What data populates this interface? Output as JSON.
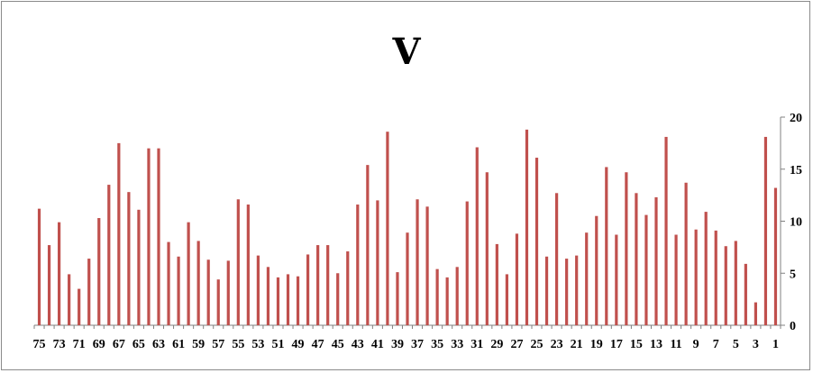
{
  "chart_data": {
    "type": "bar",
    "title": "V",
    "xlabel": "",
    "ylabel": "",
    "ylim": [
      0,
      20
    ],
    "yticks": [
      0,
      5,
      10,
      15,
      20
    ],
    "y_axis_position": "right",
    "x_axis_reversed": true,
    "grid": false,
    "legend": "none",
    "bar_color": "#c0504d",
    "categories": [
      "1",
      "2",
      "3",
      "4",
      "5",
      "6",
      "7",
      "8",
      "9",
      "10",
      "11",
      "12",
      "13",
      "14",
      "15",
      "16",
      "17",
      "18",
      "19",
      "20",
      "21",
      "22",
      "23",
      "24",
      "25",
      "26",
      "27",
      "28",
      "29",
      "30",
      "31",
      "32",
      "33",
      "34",
      "35",
      "36",
      "37",
      "38",
      "39",
      "40",
      "41",
      "42",
      "43",
      "44",
      "45",
      "46",
      "47",
      "48",
      "49",
      "50",
      "51",
      "52",
      "53",
      "54",
      "55",
      "56",
      "57",
      "58",
      "59",
      "60",
      "61",
      "62",
      "63",
      "64",
      "65",
      "66",
      "67",
      "68",
      "69",
      "70",
      "71",
      "72",
      "73",
      "74",
      "75"
    ],
    "x_tick_labels": [
      "1",
      "3",
      "5",
      "7",
      "9",
      "11",
      "13",
      "15",
      "17",
      "19",
      "21",
      "23",
      "25",
      "27",
      "29",
      "31",
      "33",
      "35",
      "37",
      "39",
      "41",
      "43",
      "45",
      "47",
      "49",
      "51",
      "53",
      "55",
      "57",
      "59",
      "61",
      "63",
      "65",
      "67",
      "69",
      "71",
      "73",
      "75"
    ],
    "values": [
      13.2,
      18.1,
      2.2,
      5.9,
      8.1,
      7.6,
      9.1,
      10.9,
      9.2,
      13.7,
      8.7,
      18.1,
      12.3,
      10.6,
      12.7,
      14.7,
      8.7,
      15.2,
      10.5,
      8.9,
      6.7,
      6.4,
      12.7,
      6.6,
      16.1,
      18.8,
      8.8,
      4.9,
      7.8,
      14.7,
      17.1,
      11.9,
      5.6,
      4.6,
      5.4,
      11.4,
      12.1,
      8.9,
      5.1,
      18.6,
      12.0,
      15.4,
      11.6,
      7.1,
      5.0,
      7.7,
      7.7,
      6.8,
      4.7,
      4.9,
      4.6,
      5.6,
      6.7,
      11.6,
      12.1,
      6.2,
      4.4,
      6.3,
      8.1,
      9.9,
      6.6,
      8.0,
      17.0,
      17.0,
      11.1,
      12.8,
      17.5,
      13.5,
      10.3,
      6.4,
      3.5,
      4.9,
      9.9,
      7.7,
      11.2
    ]
  }
}
